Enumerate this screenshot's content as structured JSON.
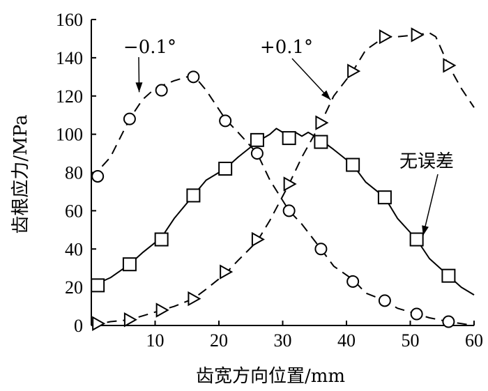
{
  "chart_data": {
    "type": "line",
    "xlabel": "齿宽方向位置/mm",
    "ylabel": "齿根应力/MPa",
    "xlim": [
      0,
      60
    ],
    "ylim": [
      0,
      160
    ],
    "xticks": [
      10,
      20,
      30,
      40,
      50,
      60
    ],
    "yticks": [
      0,
      20,
      40,
      60,
      80,
      100,
      120,
      140,
      160
    ],
    "grid": false,
    "series": [
      {
        "name": "-0.1°",
        "line_style": "dashed",
        "marker": "circle",
        "x": [
          0,
          3,
          6,
          8,
          10,
          13,
          16,
          18,
          21,
          23,
          26,
          28,
          31,
          33,
          36,
          38,
          41,
          43,
          46,
          48,
          51,
          53,
          56,
          58,
          60
        ],
        "y": [
          77,
          88,
          108,
          118,
          124,
          128,
          131,
          123,
          108,
          101,
          90,
          76,
          60,
          53,
          40,
          31,
          24,
          17,
          13,
          9,
          6,
          4,
          2,
          1,
          0
        ],
        "marker_x": [
          1,
          6,
          11,
          16,
          21,
          26,
          31,
          36,
          41,
          46,
          51,
          56
        ],
        "marker_y": [
          78,
          108,
          123,
          130,
          107,
          90,
          60,
          40,
          23,
          13,
          6,
          2
        ]
      },
      {
        "name": "+0.1°",
        "line_style": "dashed",
        "marker": "triangle-right",
        "x": [
          0,
          3,
          6,
          8,
          11,
          13,
          16,
          18,
          21,
          23,
          26,
          28,
          31,
          33,
          36,
          38,
          41,
          43,
          46,
          48,
          51,
          53,
          54,
          56,
          58,
          60
        ],
        "y": [
          0,
          2,
          3,
          5,
          8,
          10,
          14,
          19,
          27,
          34,
          44,
          55,
          74,
          88,
          106,
          120,
          133,
          144,
          151,
          151,
          152,
          153,
          151,
          136,
          124,
          114
        ],
        "marker_x": [
          1,
          6,
          11,
          16,
          21,
          26,
          31,
          36,
          41,
          46,
          51,
          56
        ],
        "marker_y": [
          1,
          3,
          8,
          14,
          28,
          45,
          74,
          106,
          133,
          151,
          152,
          136
        ]
      },
      {
        "name": "无误差",
        "line_style": "solid",
        "marker": "square",
        "x": [
          1,
          3,
          6,
          8,
          11,
          13,
          16,
          18,
          21,
          23,
          26,
          28,
          29,
          30,
          31,
          32,
          33,
          34,
          36,
          38,
          41,
          43,
          46,
          48,
          51,
          53,
          56,
          58,
          60
        ],
        "y": [
          22,
          25,
          32,
          38,
          46,
          56,
          68,
          76,
          82,
          88,
          96,
          100,
          103,
          101,
          100,
          101,
          99,
          101,
          97,
          92,
          84,
          75,
          67,
          56,
          45,
          35,
          26,
          20,
          16
        ],
        "marker_x": [
          1,
          6,
          11,
          16,
          21,
          26,
          31,
          36,
          41,
          46,
          51,
          56
        ],
        "marker_y": [
          21,
          32,
          45,
          68,
          82,
          97,
          98,
          96,
          84,
          67,
          45,
          26
        ]
      }
    ],
    "annotations": [
      {
        "text": "−0.1°",
        "target_x": 7.5,
        "target_y": 122
      },
      {
        "text": "+0.1°",
        "target_x": 37.5,
        "target_y": 118
      },
      {
        "text": "无误差",
        "target_x": 52,
        "target_y": 47
      }
    ]
  }
}
